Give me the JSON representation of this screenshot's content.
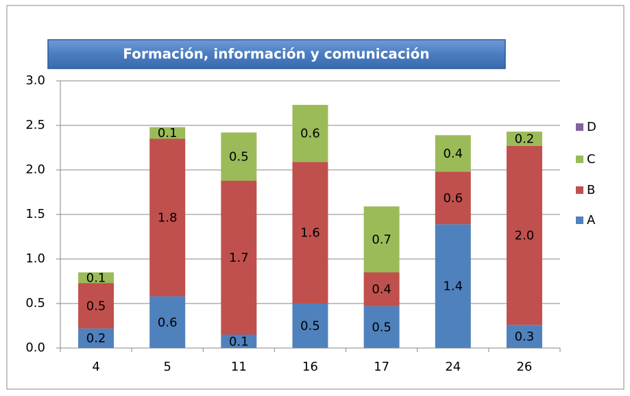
{
  "chart_data": {
    "type": "stacked_bar",
    "title": "Formación, información y comunicación",
    "categories": [
      "4",
      "5",
      "11",
      "16",
      "17",
      "24",
      "26"
    ],
    "series": [
      {
        "name": "A",
        "color": "#4f81bd",
        "values": [
          0.22,
          0.58,
          0.15,
          0.5,
          0.47,
          1.39,
          0.26
        ],
        "value_labels": [
          "0.2",
          "0.6",
          "0.1",
          "0.5",
          "0.5",
          "1.4",
          "0.3"
        ]
      },
      {
        "name": "B",
        "color": "#c0504d",
        "values": [
          0.51,
          1.77,
          1.73,
          1.59,
          0.38,
          0.59,
          2.01
        ],
        "value_labels": [
          "0.5",
          "1.8",
          "1.7",
          "1.6",
          "0.4",
          "0.6",
          "2.0"
        ]
      },
      {
        "name": "C",
        "color": "#9bbb59",
        "values": [
          0.12,
          0.13,
          0.54,
          0.64,
          0.74,
          0.41,
          0.16
        ],
        "value_labels": [
          "0.1",
          "0.1",
          "0.5",
          "0.6",
          "0.7",
          "0.4",
          "0.2"
        ]
      },
      {
        "name": "D",
        "color": "#8064a2",
        "values": [
          0,
          0,
          0,
          0,
          0,
          0,
          0
        ]
      }
    ],
    "ylim": [
      0,
      3
    ],
    "yticks": [
      {
        "value": 0,
        "label": "0.0"
      },
      {
        "value": 0.5,
        "label": "0.5"
      },
      {
        "value": 1,
        "label": "1.0"
      },
      {
        "value": 1.5,
        "label": "1.5"
      },
      {
        "value": 2,
        "label": "2.0"
      },
      {
        "value": 2.5,
        "label": "2.5"
      },
      {
        "value": 3,
        "label": "3.0"
      }
    ],
    "grid": true,
    "legend": "right"
  }
}
